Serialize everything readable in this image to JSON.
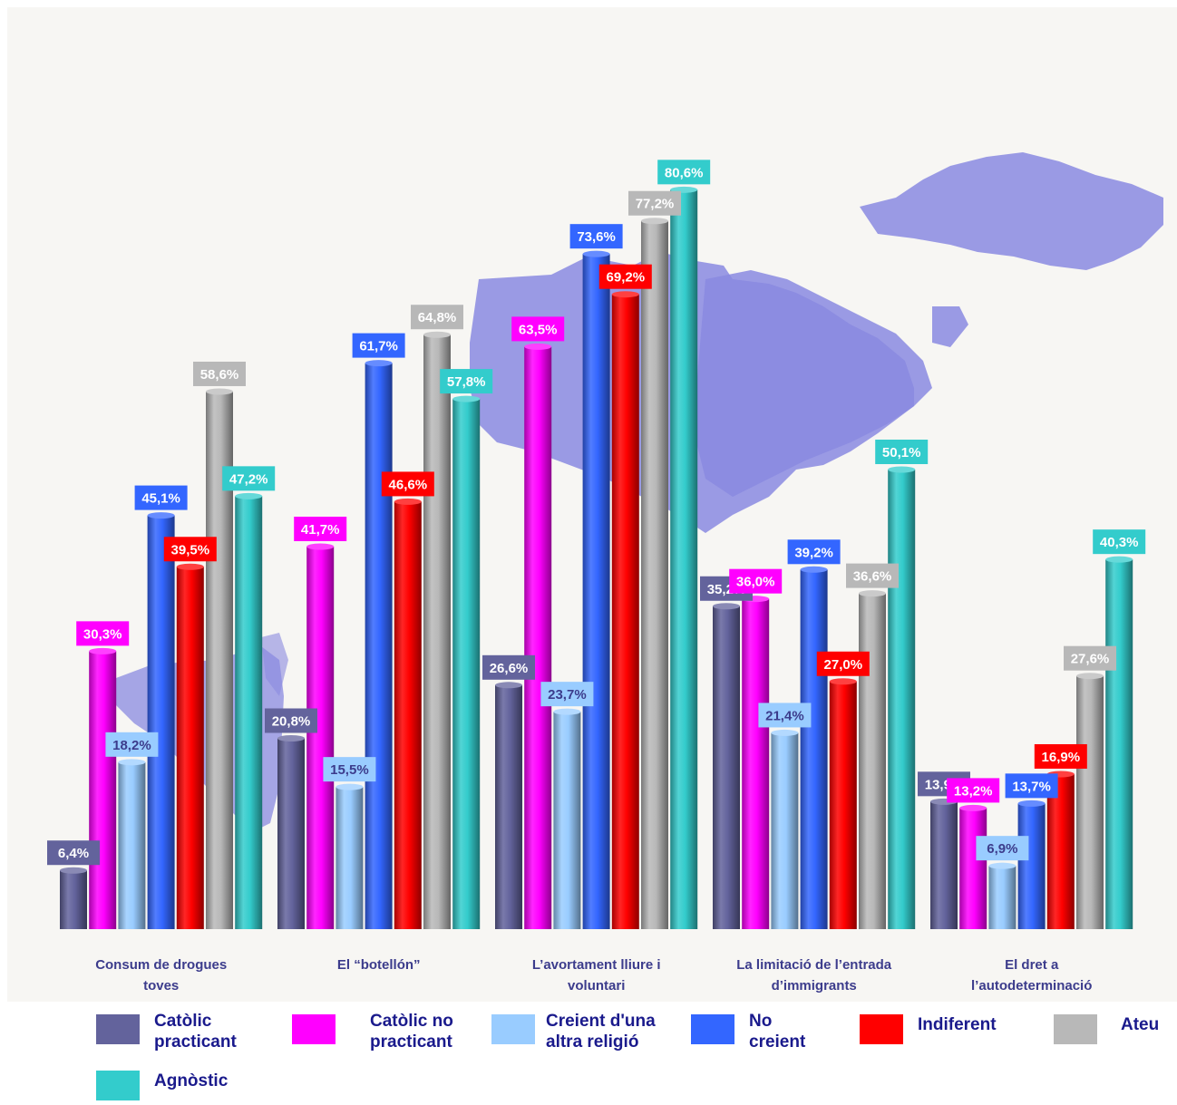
{
  "chart_data": {
    "type": "bar",
    "categories": [
      [
        "Consum de drogues",
        "toves"
      ],
      [
        "El “botellón”"
      ],
      [
        "L’avortament lliure i",
        "voluntari"
      ],
      [
        "La limitació de l’entrada",
        "d’immigrants"
      ],
      [
        "El dret a",
        "l’autodeterminació"
      ]
    ],
    "series": [
      {
        "name": [
          "Catòlic",
          "practicant"
        ],
        "color": "#63639c",
        "values": [
          6.4,
          20.8,
          26.6,
          35.2,
          13.9
        ],
        "labels": [
          "6,4%",
          "20,8%",
          "26,6%",
          "35,2%",
          "13,9%"
        ]
      },
      {
        "name": [
          "Catòlic no",
          "practicant"
        ],
        "color": "#ff00ff",
        "values": [
          30.3,
          41.7,
          63.5,
          36.0,
          13.2
        ],
        "labels": [
          "30,3%",
          "41,7%",
          "63,5%",
          "36,0%",
          "13,2%"
        ]
      },
      {
        "name": [
          "Creient d'una",
          "altra religió"
        ],
        "color": "#99ccff",
        "values": [
          18.2,
          15.5,
          23.7,
          21.4,
          6.9
        ],
        "labels": [
          "18,2%",
          "15,5%",
          "23,7%",
          "21,4%",
          "6,9%"
        ]
      },
      {
        "name": [
          "No",
          "creient"
        ],
        "color": "#3366ff",
        "values": [
          45.1,
          61.7,
          73.6,
          39.2,
          13.7
        ],
        "labels": [
          "45,1%",
          "61,7%",
          "73,6%",
          "39,2%",
          "13,7%"
        ]
      },
      {
        "name": [
          "Indiferent"
        ],
        "color": "#ff0000",
        "values": [
          39.5,
          46.6,
          69.2,
          27.0,
          16.9
        ],
        "labels": [
          "39,5%",
          "46,6%",
          "69,2%",
          "27,0%",
          "16,9%"
        ]
      },
      {
        "name": [
          "Ateu"
        ],
        "color": "#b8b8b8",
        "values": [
          58.6,
          64.8,
          77.2,
          36.6,
          27.6
        ],
        "labels": [
          "58,6%",
          "64,8%",
          "77,2%",
          "36,6%",
          "27,6%"
        ]
      },
      {
        "name": [
          "Agnòstic"
        ],
        "color": "#33cccc",
        "values": [
          47.2,
          57.8,
          80.6,
          50.1,
          40.3
        ],
        "labels": [
          "47,2%",
          "57,8%",
          "80,6%",
          "50,1%",
          "40,3%"
        ]
      }
    ],
    "value_label_colors": [
      "#ffffff",
      "#ffffff",
      "#3c3c8c",
      "#ffffff",
      "#ffffff",
      "#ffffff",
      "#ffffff"
    ],
    "ylim": [
      0,
      100
    ],
    "grid": false,
    "legend_position": "bottom"
  }
}
